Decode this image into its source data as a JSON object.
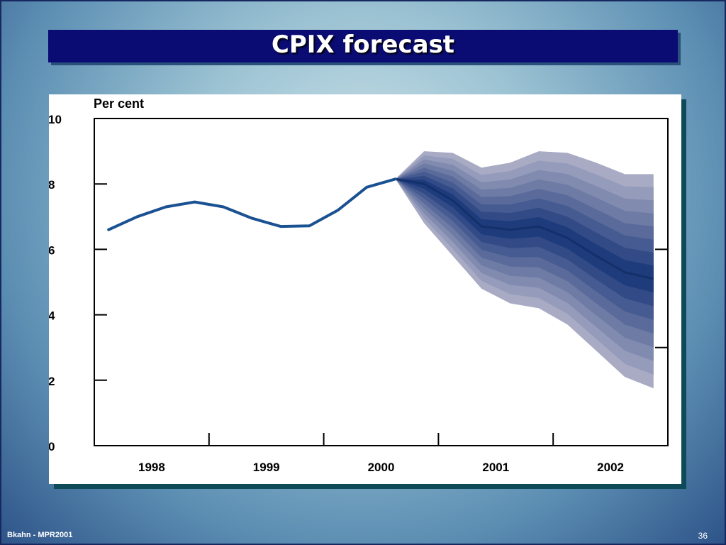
{
  "slide": {
    "title": "CPIX forecast",
    "footer_left": "Bkahn - MPR2001",
    "page_number": "36"
  },
  "colors": {
    "line": "#1a5192",
    "fan_outer": "#a9abc4",
    "fan_inner": "#1e3b7c",
    "title_bg": "#0a0c74"
  },
  "chart_data": {
    "type": "area",
    "ylabel": "Per cent",
    "ylim": [
      0,
      10
    ],
    "yticks": [
      0,
      2,
      4,
      6,
      8,
      10
    ],
    "right_ticks": [
      3,
      6
    ],
    "xlim": [
      1997.5,
      2002.5
    ],
    "xtick_labels": [
      {
        "label": "1998",
        "x": 1998.0
      },
      {
        "label": "1999",
        "x": 1999.0
      },
      {
        "label": "2000",
        "x": 2000.0
      },
      {
        "label": "2001",
        "x": 2001.0
      },
      {
        "label": "2002",
        "x": 2002.0
      }
    ],
    "year_boundaries": [
      1998.5,
      1999.5,
      2000.5,
      2001.5
    ],
    "series": [
      {
        "values": [
          [
            1997.625,
            6.6
          ],
          [
            1997.875,
            7.0
          ],
          [
            1998.125,
            7.3
          ],
          [
            1998.375,
            7.45
          ],
          [
            1998.625,
            7.3
          ],
          [
            1998.875,
            6.95
          ],
          [
            1999.125,
            6.7
          ],
          [
            1999.375,
            6.72
          ],
          [
            1999.625,
            7.2
          ],
          [
            1999.875,
            7.9
          ],
          [
            2000.125,
            8.15
          ]
        ]
      }
    ],
    "fan": {
      "x": [
        2000.125,
        2000.375,
        2000.625,
        2000.875,
        2001.125,
        2001.375,
        2001.625,
        2001.875,
        2002.125,
        2002.375
      ],
      "central": [
        8.15,
        8.0,
        7.5,
        6.7,
        6.6,
        6.7,
        6.35,
        5.8,
        5.3,
        5.1
      ],
      "lower": [
        8.15,
        6.8,
        5.8,
        4.8,
        4.35,
        4.2,
        3.7,
        2.9,
        2.1,
        1.75
      ],
      "upper": [
        8.15,
        9.0,
        8.95,
        8.5,
        8.65,
        9.0,
        8.95,
        8.65,
        8.3,
        8.3
      ]
    }
  }
}
